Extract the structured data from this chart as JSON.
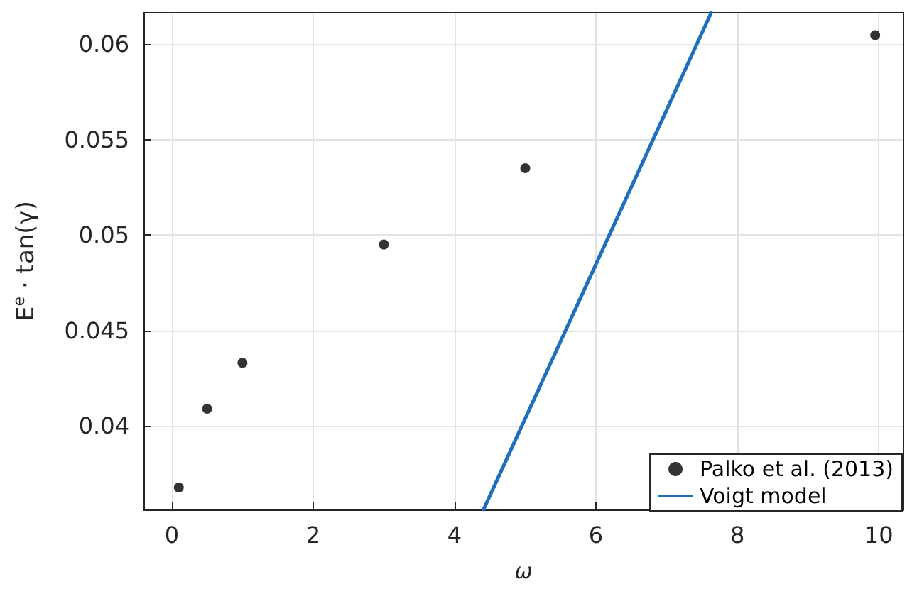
{
  "chart_data": {
    "type": "scatter",
    "xlabel": "ω",
    "ylabel": "E$^{e}$ · tan(γ)",
    "xlim": [
      -0.4,
      10.35
    ],
    "xticks": [
      0,
      2,
      4,
      6,
      8,
      10
    ],
    "ylim": [
      0.03562,
      0.06164
    ],
    "yticks": [
      0.04,
      0.045,
      0.05,
      0.055,
      0.06
    ],
    "grid": true,
    "legend": "bottom right",
    "series": [
      {
        "name": "Palko et al. (2013)",
        "marker": "circle",
        "color": "#000000",
        "x": [
          0.1,
          0.5,
          1,
          3,
          5,
          9.95
        ],
        "values": [
          0.03677,
          0.0409,
          0.0433,
          0.0495,
          0.0535,
          0.06047
        ]
      },
      {
        "name": "Voigt model",
        "type": "line",
        "color": "#1f6fbd",
        "line_style": "solid",
        "x": [
          4.41,
          7.63
        ],
        "values": [
          0.03562,
          0.06164
        ]
      }
    ]
  }
}
